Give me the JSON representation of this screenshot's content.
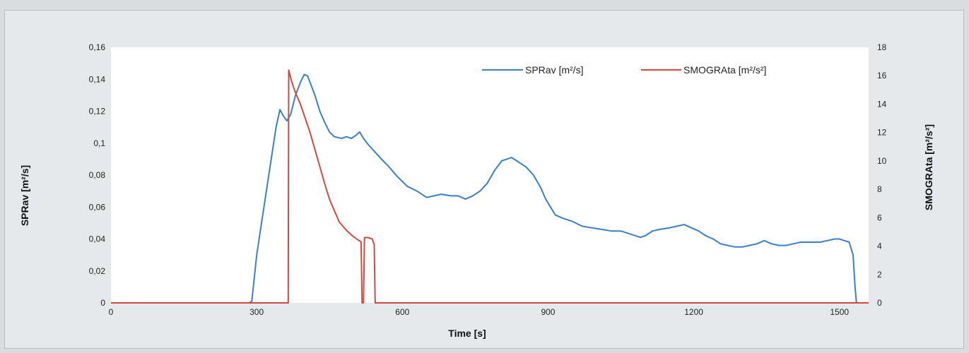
{
  "chart_data": {
    "type": "line",
    "xlabel": "Time [s]",
    "ylabel": "SPRav [m²/s]",
    "y2label": "SMOGRAta [m²/s²]",
    "xlim": [
      0,
      1560
    ],
    "ylim": [
      0,
      0.16
    ],
    "y2lim": [
      0,
      18
    ],
    "x_ticks": [
      0,
      300,
      600,
      900,
      1200,
      1500
    ],
    "y_ticks": [
      "0",
      "0,02",
      "0,04",
      "0,06",
      "0,08",
      "0,1",
      "0,12",
      "0,14",
      "0,16"
    ],
    "y2_ticks": [
      "0",
      "2",
      "4",
      "6",
      "8",
      "10",
      "12",
      "14",
      "16",
      "18"
    ],
    "grid": false,
    "legend_position": "top-right",
    "series": [
      {
        "name": "SPRav [m²/s]",
        "axis": "left",
        "color": "#3a7fc8",
        "points": [
          [
            0,
            0
          ],
          [
            285,
            0
          ],
          [
            290,
            0.001
          ],
          [
            300,
            0.03
          ],
          [
            310,
            0.05
          ],
          [
            325,
            0.08
          ],
          [
            340,
            0.11
          ],
          [
            348,
            0.121
          ],
          [
            355,
            0.117
          ],
          [
            362,
            0.114
          ],
          [
            370,
            0.118
          ],
          [
            380,
            0.13
          ],
          [
            390,
            0.138
          ],
          [
            398,
            0.143
          ],
          [
            405,
            0.142
          ],
          [
            410,
            0.138
          ],
          [
            420,
            0.13
          ],
          [
            430,
            0.12
          ],
          [
            440,
            0.113
          ],
          [
            450,
            0.107
          ],
          [
            460,
            0.104
          ],
          [
            475,
            0.103
          ],
          [
            485,
            0.104
          ],
          [
            495,
            0.103
          ],
          [
            505,
            0.105
          ],
          [
            512,
            0.107
          ],
          [
            520,
            0.103
          ],
          [
            530,
            0.099
          ],
          [
            545,
            0.094
          ],
          [
            560,
            0.089
          ],
          [
            570,
            0.086
          ],
          [
            590,
            0.079
          ],
          [
            610,
            0.073
          ],
          [
            630,
            0.07
          ],
          [
            650,
            0.066
          ],
          [
            665,
            0.067
          ],
          [
            680,
            0.068
          ],
          [
            700,
            0.067
          ],
          [
            715,
            0.067
          ],
          [
            730,
            0.065
          ],
          [
            745,
            0.067
          ],
          [
            760,
            0.07
          ],
          [
            775,
            0.075
          ],
          [
            790,
            0.083
          ],
          [
            805,
            0.089
          ],
          [
            815,
            0.09
          ],
          [
            825,
            0.091
          ],
          [
            835,
            0.089
          ],
          [
            845,
            0.087
          ],
          [
            855,
            0.085
          ],
          [
            870,
            0.08
          ],
          [
            885,
            0.072
          ],
          [
            895,
            0.065
          ],
          [
            905,
            0.06
          ],
          [
            915,
            0.055
          ],
          [
            930,
            0.053
          ],
          [
            950,
            0.051
          ],
          [
            970,
            0.048
          ],
          [
            990,
            0.047
          ],
          [
            1010,
            0.046
          ],
          [
            1030,
            0.045
          ],
          [
            1050,
            0.045
          ],
          [
            1070,
            0.043
          ],
          [
            1090,
            0.041
          ],
          [
            1100,
            0.042
          ],
          [
            1115,
            0.045
          ],
          [
            1130,
            0.046
          ],
          [
            1150,
            0.047
          ],
          [
            1165,
            0.048
          ],
          [
            1180,
            0.049
          ],
          [
            1195,
            0.047
          ],
          [
            1210,
            0.045
          ],
          [
            1225,
            0.042
          ],
          [
            1240,
            0.04
          ],
          [
            1255,
            0.037
          ],
          [
            1270,
            0.036
          ],
          [
            1285,
            0.035
          ],
          [
            1300,
            0.035
          ],
          [
            1315,
            0.036
          ],
          [
            1330,
            0.037
          ],
          [
            1345,
            0.039
          ],
          [
            1360,
            0.037
          ],
          [
            1375,
            0.036
          ],
          [
            1390,
            0.036
          ],
          [
            1405,
            0.037
          ],
          [
            1420,
            0.038
          ],
          [
            1440,
            0.038
          ],
          [
            1460,
            0.038
          ],
          [
            1475,
            0.039
          ],
          [
            1490,
            0.04
          ],
          [
            1500,
            0.04
          ],
          [
            1510,
            0.039
          ],
          [
            1520,
            0.038
          ],
          [
            1528,
            0.03
          ],
          [
            1532,
            0.01
          ],
          [
            1535,
            0
          ]
        ]
      },
      {
        "name": "SMOGRAta [m²/s²]",
        "axis": "right",
        "color": "#d24a3f",
        "points": [
          [
            0,
            0
          ],
          [
            365,
            0
          ],
          [
            366,
            16.4
          ],
          [
            372,
            15.6
          ],
          [
            380,
            14.8
          ],
          [
            390,
            14
          ],
          [
            400,
            13
          ],
          [
            410,
            12
          ],
          [
            420,
            10.8
          ],
          [
            430,
            9.6
          ],
          [
            440,
            8.4
          ],
          [
            450,
            7.3
          ],
          [
            460,
            6.5
          ],
          [
            470,
            5.7
          ],
          [
            485,
            5.1
          ],
          [
            498,
            4.7
          ],
          [
            510,
            4.4
          ],
          [
            515,
            4.3
          ],
          [
            517,
            0
          ],
          [
            520,
            0
          ],
          [
            522,
            4.6
          ],
          [
            530,
            4.6
          ],
          [
            538,
            4.5
          ],
          [
            542,
            4.1
          ],
          [
            544,
            0
          ],
          [
            1560,
            0
          ]
        ]
      }
    ]
  }
}
